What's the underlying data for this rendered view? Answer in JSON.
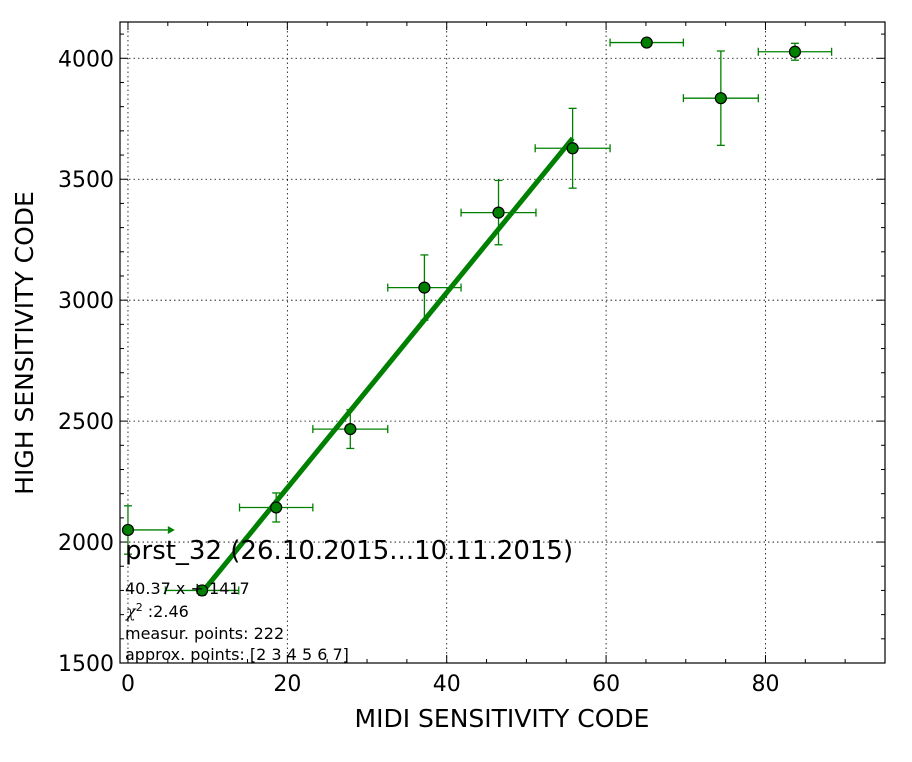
{
  "chart_data": {
    "type": "scatter",
    "xlabel": "MIDI SENSITIVITY CODE",
    "ylabel": "HIGH SENSITIVITY CODE",
    "xlim": [
      -1,
      95
    ],
    "ylim": [
      1500,
      4150
    ],
    "x_ticks": [
      "0",
      "20",
      "40",
      "60",
      "80"
    ],
    "y_ticks": [
      "1500",
      "2000",
      "2500",
      "3000",
      "3500",
      "4000"
    ],
    "grid": true,
    "colors": {
      "points": "#008000",
      "errorbars": "#008000",
      "fit_line": "#008000",
      "marker_edge": "#000000"
    },
    "points": [
      {
        "x": 0,
        "y": 2050,
        "xerr": 5,
        "yerr": 100,
        "xerr_side": "upper-arrow"
      },
      {
        "x": 9.3,
        "y": 1800,
        "xerr": 4.6,
        "yerr": 20
      },
      {
        "x": 18.6,
        "y": 2143,
        "xerr": 4.6,
        "yerr": 60
      },
      {
        "x": 27.9,
        "y": 2467,
        "xerr": 4.7,
        "yerr": 80
      },
      {
        "x": 37.2,
        "y": 3052,
        "xerr": 4.6,
        "yerr": 135
      },
      {
        "x": 46.5,
        "y": 3362,
        "xerr": 4.7,
        "yerr": 133
      },
      {
        "x": 55.8,
        "y": 3628,
        "xerr": 4.7,
        "yerr": 165
      },
      {
        "x": 65.1,
        "y": 4065,
        "xerr": 4.6,
        "yerr": 0
      },
      {
        "x": 74.4,
        "y": 3835,
        "xerr": 4.7,
        "yerr": 195
      },
      {
        "x": 83.7,
        "y": 4027,
        "xerr": 4.6,
        "yerr": 35
      }
    ],
    "fit_line": {
      "x": [
        9.3,
        55.8
      ],
      "y": [
        1792,
        3669
      ]
    },
    "annotations": {
      "title": "prst_32 (26.10.2015...10.11.2015)",
      "fit": "40.37 x + 1417",
      "chi_symbol": "χ",
      "chi_exp": "2",
      "chi_value": " :2.46",
      "measur": "measur. points: 222",
      "approx": "approx. points: [2 3 4 5 6 7]"
    }
  }
}
